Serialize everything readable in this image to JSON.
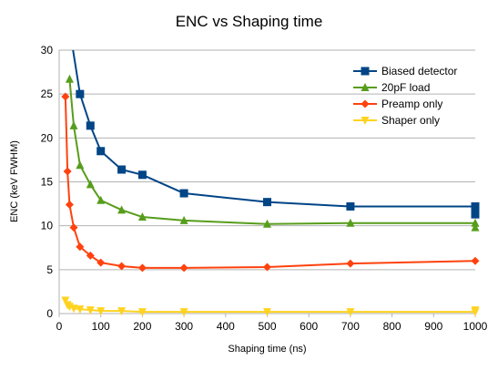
{
  "chart_data": {
    "type": "line",
    "title": "ENC vs Shaping time",
    "xlabel": "Shaping time (ns)",
    "ylabel": "ENC (keV FWHM)",
    "xlim": [
      0,
      1000
    ],
    "ylim": [
      0,
      30
    ],
    "xticks": [
      0,
      100,
      200,
      300,
      400,
      500,
      600,
      700,
      800,
      900,
      1000
    ],
    "yticks": [
      0,
      5,
      10,
      15,
      20,
      25,
      30
    ],
    "grid": "horizontal",
    "legend": "top-right",
    "series": [
      {
        "name": "Biased detector",
        "color": "#004586",
        "marker": "square",
        "x": [
          50,
          75,
          100,
          150,
          200,
          300,
          500,
          700,
          1000,
          1000
        ],
        "y": [
          25.0,
          21.4,
          18.5,
          16.4,
          15.8,
          13.7,
          12.7,
          12.2,
          12.2,
          11.3
        ],
        "curve_start": [
          30,
          31
        ]
      },
      {
        "name": "20pF load",
        "color": "#579d1c",
        "marker": "triangle",
        "x": [
          25,
          35,
          50,
          75,
          100,
          150,
          200,
          300,
          500,
          700,
          1000,
          1000
        ],
        "y": [
          26.7,
          21.4,
          16.9,
          14.7,
          12.9,
          11.8,
          11.0,
          10.6,
          10.2,
          10.3,
          10.3,
          9.8
        ]
      },
      {
        "name": "Preamp only",
        "color": "#ff420e",
        "marker": "diamond",
        "x": [
          15,
          20,
          25,
          35,
          50,
          75,
          100,
          150,
          200,
          300,
          500,
          700,
          1000
        ],
        "y": [
          24.7,
          16.2,
          12.4,
          9.8,
          7.6,
          6.6,
          5.8,
          5.4,
          5.2,
          5.2,
          5.3,
          5.7,
          6.0
        ]
      },
      {
        "name": "Shaper only",
        "color": "#ffd320",
        "marker": "triangle-down",
        "x": [
          15,
          20,
          25,
          35,
          50,
          75,
          100,
          150,
          200,
          300,
          500,
          700,
          1000,
          1000
        ],
        "y": [
          1.5,
          1.0,
          0.8,
          0.6,
          0.5,
          0.4,
          0.3,
          0.3,
          0.2,
          0.2,
          0.2,
          0.2,
          0.2,
          0.4
        ]
      }
    ]
  }
}
